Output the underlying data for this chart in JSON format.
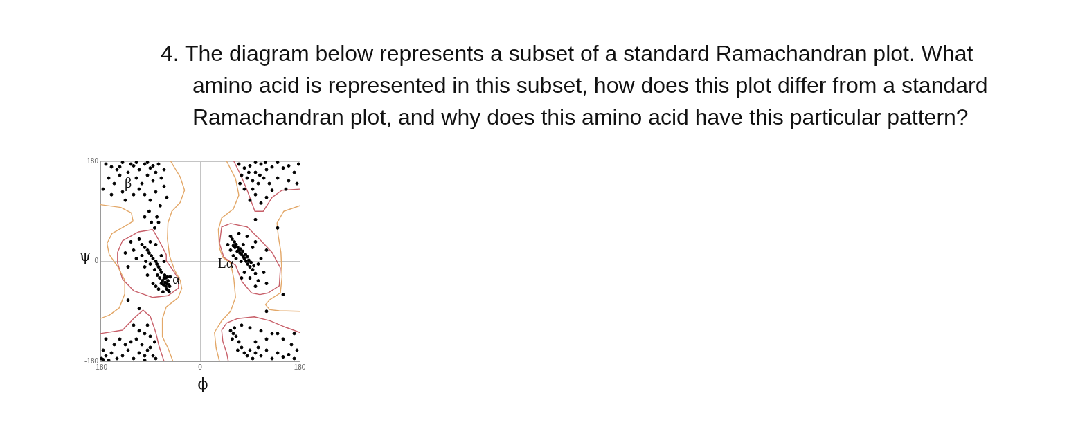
{
  "chart_data": {
    "type": "scatter",
    "title": "4. The diagram below represents a subset of a standard Ramachandran plot. What amino acid is represented in this subset, how does this plot differ from a standard Ramachandran plot, and why does this amino acid have this particular pattern?",
    "xlabel": "ϕ",
    "ylabel": "ψ",
    "xlim": [
      -180,
      180
    ],
    "ylim": [
      -180,
      180
    ],
    "xticks": [
      -180,
      0,
      180
    ],
    "yticks": [
      -180,
      0,
      180
    ],
    "grid": true,
    "line_style": "solid",
    "annotations": [
      "β",
      {
        "text": "α",
        "x": -43,
        "y": -34
      },
      {
        "text": "Lα",
        "x": 46,
        "y": -5
      }
    ],
    "series": [
      {
        "color": "#000000",
        "marker": "circle",
        "x": [
          -60,
          -62,
          -58,
          -65,
          -63,
          -57,
          -66,
          -60,
          -55,
          -68,
          -64,
          -70,
          -72,
          -75,
          -78,
          -80,
          -85,
          -88,
          -92,
          -95,
          -100,
          -105,
          -90,
          -110,
          -120,
          -115,
          -100,
          -95,
          -85,
          -75,
          -67,
          -62,
          -59,
          -70,
          -73,
          -77,
          -82,
          -90,
          -98,
          -105,
          -125,
          -130,
          -135,
          -80,
          -70,
          -65,
          -58,
          -54,
          -56,
          -80,
          70,
          72,
          68,
          75,
          65,
          62,
          58,
          55,
          78,
          80,
          83,
          86,
          90,
          95,
          100,
          73,
          67,
          77,
          63,
          60,
          82,
          85,
          88,
          92,
          97,
          105,
          110,
          115,
          120,
          100,
          80,
          75,
          65,
          60,
          55,
          50,
          95,
          100,
          85,
          70,
          120,
          105,
          90,
          78,
          74,
          -170,
          -160,
          -150,
          -140,
          -130,
          -120,
          -110,
          -100,
          -90,
          -80,
          -75,
          -70,
          -65,
          -85,
          -95,
          -105,
          -115,
          -110,
          -135,
          -145,
          -155,
          -165,
          -175,
          -160,
          -140,
          -120,
          -100,
          -80,
          -65,
          -60,
          -90,
          -72,
          -78,
          -82,
          -75,
          -145,
          -125,
          -95,
          -115,
          -85,
          70,
          80,
          90,
          100,
          110,
          120,
          130,
          140,
          150,
          160,
          170,
          178,
          85,
          95,
          75,
          105,
          115,
          125,
          140,
          160,
          175,
          100,
          110,
          90,
          120,
          80,
          72,
          95,
          130,
          155,
          100,
          88,
          108,
          118,
          -178,
          -170,
          -165,
          -175,
          -160,
          -150,
          -140,
          -130,
          -120,
          -110,
          -100,
          -95,
          -90,
          -85,
          -80,
          -105,
          -115,
          -125,
          -135,
          -145,
          -155,
          -170,
          -110,
          -100,
          -90,
          -82,
          -120,
          -95,
          -175,
          -100,
          55,
          60,
          58,
          65,
          70,
          62,
          75,
          80,
          85,
          90,
          95,
          100,
          110,
          120,
          130,
          140,
          150,
          160,
          170,
          175,
          165,
          150,
          130,
          110,
          90,
          75,
          100,
          120,
          140,
          170,
          68,
          105,
          -100,
          -92,
          -88,
          -130,
          -110,
          140,
          100,
          150,
          120
        ],
        "values": [
          -40,
          -45,
          -35,
          -30,
          -38,
          -42,
          -42,
          -50,
          -45,
          -35,
          -25,
          -20,
          -15,
          -10,
          -5,
          0,
          5,
          10,
          15,
          20,
          25,
          30,
          35,
          40,
          20,
          5,
          -10,
          -25,
          -40,
          -50,
          -55,
          -30,
          -28,
          -40,
          -30,
          -25,
          -15,
          -5,
          0,
          10,
          35,
          -10,
          15,
          30,
          10,
          0,
          -52,
          -28,
          -55,
          -45,
          20,
          15,
          25,
          12,
          30,
          35,
          40,
          45,
          8,
          5,
          0,
          -5,
          -10,
          -15,
          -22,
          22,
          18,
          18,
          25,
          28,
          12,
          8,
          2,
          -2,
          -8,
          -5,
          5,
          -20,
          -40,
          -45,
          -20,
          -30,
          5,
          10,
          20,
          30,
          25,
          35,
          45,
          50,
          20,
          -35,
          -30,
          30,
          0,
          175,
          170,
          165,
          178,
          160,
          172,
          165,
          175,
          168,
          160,
          175,
          150,
          165,
          145,
          155,
          140,
          150,
          130,
          110,
          155,
          140,
          150,
          130,
          120,
          125,
          120,
          120,
          125,
          135,
          115,
          110,
          100,
          80,
          60,
          70,
          170,
          175,
          178,
          178,
          172,
          175,
          168,
          172,
          160,
          175,
          165,
          170,
          178,
          168,
          172,
          160,
          175,
          150,
          145,
          155,
          140,
          150,
          140,
          150,
          145,
          140,
          120,
          105,
          110,
          115,
          130,
          140,
          130,
          128,
          130,
          178,
          160,
          155,
          178,
          -175,
          -170,
          -178,
          -160,
          -165,
          -175,
          -170,
          -160,
          -175,
          -165,
          -170,
          -160,
          -155,
          -170,
          -175,
          -150,
          -140,
          -145,
          -150,
          -140,
          -150,
          -140,
          -125,
          -130,
          -135,
          -145,
          -115,
          -115,
          -177,
          -178,
          -125,
          -130,
          -140,
          -135,
          -145,
          -120,
          -155,
          -165,
          -170,
          -160,
          -175,
          -165,
          -170,
          -160,
          -175,
          -165,
          -172,
          -168,
          -175,
          -160,
          -150,
          -140,
          -130,
          -125,
          -120,
          -115,
          -145,
          -140,
          -130,
          -130,
          -160,
          -155,
          80,
          90,
          70,
          -70,
          -85,
          60,
          75,
          -60,
          -90
        ]
      },
      {
        "type": "line",
        "color": "#e3a869",
        "x": [
          -53,
          -36,
          -28,
          -36,
          -51,
          -58,
          -59,
          -55,
          -46,
          -36,
          -33,
          -40,
          -61,
          -68,
          -68,
          -58,
          -49
        ],
        "values": [
          180,
          152,
          128,
          106,
          90,
          69,
          40,
          9,
          -16,
          -34,
          -49,
          -66,
          -82,
          -103,
          -136,
          -156,
          -180
        ]
      },
      {
        "type": "line",
        "color": "#e3a869",
        "x": [
          -180,
          -143,
          -124,
          -121,
          -136,
          -159,
          -168,
          -164,
          -149,
          -136,
          -136,
          -146,
          -164,
          -180
        ],
        "values": [
          102,
          97,
          87,
          72,
          63,
          50,
          32,
          12,
          -9,
          -34,
          -59,
          -84,
          -97,
          -103
        ]
      },
      {
        "type": "line",
        "color": "#c8606a",
        "x": [
          -86,
          -111,
          -140,
          -149,
          -149,
          -140,
          -120,
          -86,
          null,
          -86,
          -58,
          -40,
          -39,
          -49,
          -61,
          -61,
          -74,
          -83,
          -86
        ],
        "values": [
          57,
          53,
          37,
          16,
          -3,
          -32,
          -53,
          -65,
          null,
          -65,
          -62,
          -49,
          -32,
          -16,
          1,
          12,
          37,
          53,
          57
        ]
      },
      {
        "type": "line",
        "color": "#c8606a",
        "x": [
          -180,
          -140,
          -120,
          -103,
          -90,
          -80,
          -74,
          -65
        ],
        "values": [
          -130,
          -124,
          -103,
          -88,
          -99,
          -128,
          -153,
          -180
        ]
      },
      {
        "type": "line",
        "color": "#e3a869",
        "x": [
          48,
          64,
          70,
          60,
          39,
          33,
          35,
          41,
          55,
          61,
          64,
          55,
          39,
          26,
          29,
          35
        ],
        "values": [
          180,
          149,
          119,
          94,
          78,
          57,
          24,
          7,
          -3,
          -32,
          -65,
          -90,
          -107,
          -128,
          -156,
          -180
        ]
      },
      {
        "type": "line",
        "color": "#c8606a",
        "x": [
          61,
          73,
          85,
          99,
          114,
          130,
          148,
          180
        ],
        "values": [
          180,
          156,
          128,
          90,
          90,
          115,
          128,
          130
        ]
      },
      {
        "type": "line",
        "color": "#c8606a",
        "x": [
          55,
          85,
          110,
          130,
          145,
          143,
          123,
          108,
          null,
          108,
          93,
          76,
          64,
          43,
          35,
          39,
          55
        ],
        "values": [
          68,
          62,
          37,
          16,
          -12,
          -44,
          -57,
          -60,
          null,
          -60,
          -57,
          -37,
          -7,
          7,
          32,
          62,
          68
        ]
      },
      {
        "type": "line",
        "color": "#e3a869",
        "x": [
          180,
          151,
          139,
          141,
          146,
          148,
          145,
          126,
          118,
          126,
          143,
          180
        ],
        "values": [
          100,
          90,
          69,
          47,
          16,
          -28,
          -57,
          -69,
          -78,
          -87,
          -89,
          -90
        ]
      },
      {
        "type": "line",
        "color": "#c8606a",
        "x": [
          180,
          155,
          126,
          98,
          68,
          null,
          68,
          48,
          39,
          41,
          48,
          51
        ],
        "values": [
          -128,
          -119,
          -107,
          -100,
          -103,
          null,
          -103,
          -111,
          -124,
          -144,
          -165,
          -180
        ]
      }
    ]
  }
}
